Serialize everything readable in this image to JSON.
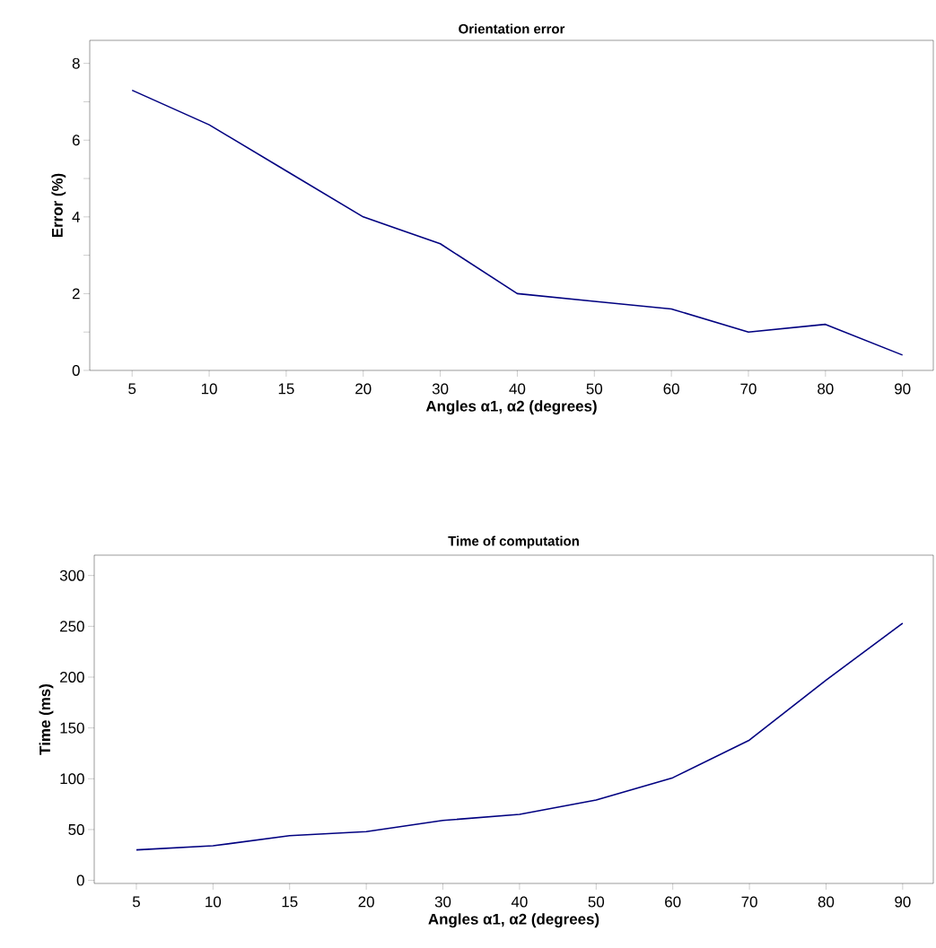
{
  "chart_data": [
    {
      "type": "line",
      "title": "Orientation error",
      "xlabel": "Angles α1, α2 (degrees)",
      "ylabel": "Error (%)",
      "categories": [
        "5",
        "10",
        "15",
        "20",
        "30",
        "40",
        "50",
        "60",
        "70",
        "80",
        "90"
      ],
      "series": [
        {
          "color": "#000080",
          "values": [
            7.3,
            6.4,
            5.2,
            4.0,
            3.3,
            2.0,
            1.8,
            1.6,
            1.0,
            1.2,
            0.4
          ]
        }
      ],
      "ylim": [
        0,
        8.6
      ],
      "yticks": [
        0,
        {
          "value": 1,
          "label": null
        },
        2,
        {
          "value": 3,
          "label": null
        },
        4,
        {
          "value": 5,
          "label": null
        },
        6,
        {
          "value": 7,
          "label": null
        },
        8
      ],
      "marker": "none",
      "line_style": "solid"
    },
    {
      "type": "line",
      "title": "Time of computation",
      "xlabel": "Angles α1, α2 (degrees)",
      "ylabel": "Time (ms)",
      "categories": [
        "5",
        "10",
        "15",
        "20",
        "30",
        "40",
        "50",
        "60",
        "70",
        "80",
        "90"
      ],
      "series": [
        {
          "color": "#000080",
          "values": [
            30,
            34,
            44,
            48,
            59,
            65,
            79,
            101,
            138,
            197,
            253
          ]
        }
      ],
      "ylim": [
        -3,
        320
      ],
      "yticks": [
        0,
        50,
        100,
        150,
        200,
        250,
        300
      ],
      "marker": "none",
      "line_style": "solid"
    }
  ]
}
